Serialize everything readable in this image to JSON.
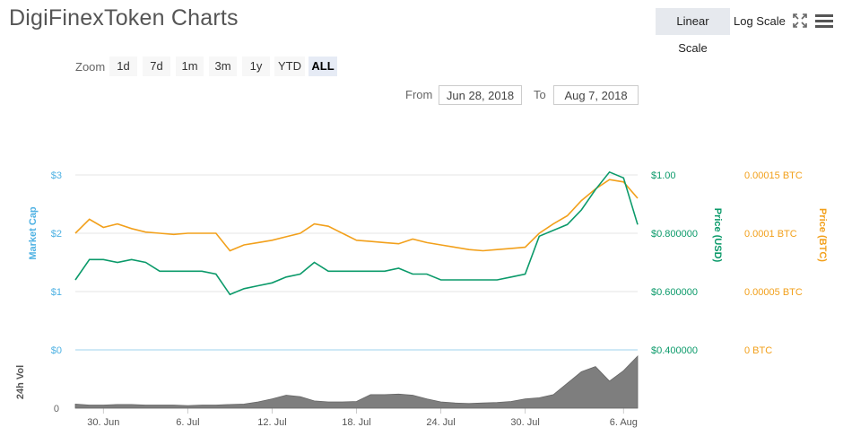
{
  "header": {
    "title": "DigiFinexToken Charts",
    "linear_scale": "Linear Scale",
    "log_scale": "Log Scale"
  },
  "zoom": {
    "label": "Zoom",
    "buttons": [
      "1d",
      "7d",
      "1m",
      "3m",
      "1y",
      "YTD",
      "ALL"
    ],
    "active": "ALL"
  },
  "range": {
    "from_label": "From",
    "from_value": "Jun 28, 2018",
    "to_label": "To",
    "to_value": "Aug 7, 2018"
  },
  "chart_data": {
    "type": "line",
    "x": [
      "Jun 28",
      "Jun 29",
      "Jun 30",
      "Jul 1",
      "Jul 2",
      "Jul 3",
      "Jul 4",
      "Jul 5",
      "Jul 6",
      "Jul 7",
      "Jul 8",
      "Jul 9",
      "Jul 10",
      "Jul 11",
      "Jul 12",
      "Jul 13",
      "Jul 14",
      "Jul 15",
      "Jul 16",
      "Jul 17",
      "Jul 18",
      "Jul 19",
      "Jul 20",
      "Jul 21",
      "Jul 22",
      "Jul 23",
      "Jul 24",
      "Jul 25",
      "Jul 26",
      "Jul 27",
      "Jul 28",
      "Jul 29",
      "Jul 30",
      "Jul 31",
      "Aug 1",
      "Aug 2",
      "Aug 3",
      "Aug 4",
      "Aug 5",
      "Aug 6",
      "Aug 7"
    ],
    "x_tick_labels": [
      "30. Jun",
      "6. Jul",
      "12. Jul",
      "18. Jul",
      "24. Jul",
      "30. Jul",
      "6. Aug"
    ],
    "series": [
      {
        "name": "Price (USD)",
        "axis": "Price (USD)",
        "color": "#0b9a6a",
        "values": [
          0.64,
          0.71,
          0.71,
          0.7,
          0.71,
          0.7,
          0.67,
          0.67,
          0.67,
          0.67,
          0.66,
          0.59,
          0.61,
          0.62,
          0.63,
          0.65,
          0.66,
          0.7,
          0.67,
          0.67,
          0.67,
          0.67,
          0.67,
          0.68,
          0.66,
          0.66,
          0.64,
          0.64,
          0.64,
          0.64,
          0.64,
          0.65,
          0.66,
          0.79,
          0.81,
          0.83,
          0.88,
          0.95,
          1.01,
          0.99,
          0.83
        ]
      },
      {
        "name": "Price (BTC)",
        "axis": "Price (BTC)",
        "color": "#f2a01b",
        "values": [
          0.0001,
          0.000112,
          0.000105,
          0.000108,
          0.000104,
          0.000101,
          0.0001,
          9.9e-05,
          0.0001,
          0.0001,
          0.0001,
          8.5e-05,
          9e-05,
          9.2e-05,
          9.4e-05,
          9.7e-05,
          0.0001,
          0.000108,
          0.000106,
          0.0001,
          9.4e-05,
          9.3e-05,
          9.2e-05,
          9.1e-05,
          9.5e-05,
          9.2e-05,
          9e-05,
          8.8e-05,
          8.6e-05,
          8.5e-05,
          8.6e-05,
          8.7e-05,
          8.8e-05,
          0.0001,
          0.000108,
          0.000115,
          0.000128,
          0.000138,
          0.000146,
          0.000144,
          0.00013
        ]
      },
      {
        "name": "24h Vol",
        "axis": "24h Vol",
        "color": "#777777",
        "values": [
          0.08,
          0.06,
          0.06,
          0.07,
          0.07,
          0.06,
          0.06,
          0.06,
          0.05,
          0.06,
          0.06,
          0.07,
          0.08,
          0.12,
          0.18,
          0.25,
          0.22,
          0.14,
          0.12,
          0.12,
          0.13,
          0.26,
          0.26,
          0.27,
          0.25,
          0.18,
          0.12,
          0.1,
          0.09,
          0.1,
          0.11,
          0.13,
          0.18,
          0.2,
          0.26,
          0.48,
          0.7,
          0.8,
          0.52,
          0.72,
          1.0
        ]
      }
    ],
    "axes": {
      "market_cap": {
        "title": "Market Cap",
        "ticks": [
          "$0",
          "$1",
          "$2",
          "$3"
        ],
        "color": "#4db1e3"
      },
      "price_usd": {
        "title": "Price (USD)",
        "ticks": [
          "$0.400000",
          "$0.600000",
          "$0.800000",
          "$1.00"
        ],
        "range": [
          0.4,
          1.0
        ],
        "color": "#0b9a6a"
      },
      "price_btc": {
        "title": "Price (BTC)",
        "ticks": [
          "0 BTC",
          "0.00005 BTC",
          "0.0001 BTC",
          "0.00015 BTC"
        ],
        "range": [
          0,
          0.00015
        ],
        "color": "#f2a01b"
      },
      "volume": {
        "title": "24h Vol",
        "ticks": [
          "0"
        ]
      }
    },
    "grid": true
  }
}
